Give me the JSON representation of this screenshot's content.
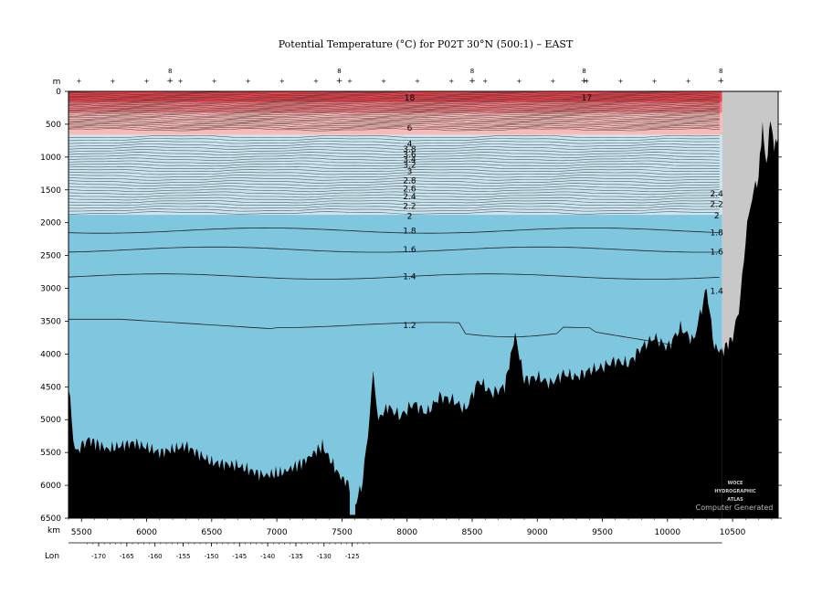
{
  "chart_data": {
    "type": "area",
    "title": "Potential Temperature (°C) for P02T 30°N (500:1) – EAST",
    "depth_unit": "m",
    "distance_unit": "km",
    "lon_label": "Lon",
    "ylim": [
      0,
      6500
    ],
    "xlim_km": [
      5400,
      10850
    ],
    "depth_ticks": [
      0,
      500,
      1000,
      1500,
      2000,
      2500,
      3000,
      3500,
      4000,
      4500,
      5000,
      5500,
      6000,
      6500
    ],
    "distance_ticks": [
      5500,
      6000,
      6500,
      7000,
      7500,
      8000,
      8500,
      9000,
      9500,
      10000,
      10500
    ],
    "lon_ticks": [
      -170,
      -165,
      -160,
      -155,
      -150,
      -145,
      -140,
      -135,
      -130,
      -125
    ],
    "section_end_km": 10420,
    "station_markers_top": [
      {
        "x": 6180,
        "label": "8"
      },
      {
        "x": 7480,
        "label": "8"
      },
      {
        "x": 8500,
        "label": "8"
      },
      {
        "x": 9360,
        "label": "8"
      },
      {
        "x": 10410,
        "label": "8"
      }
    ],
    "isotherm_labels": [
      {
        "value": "18",
        "depth": 100
      },
      {
        "value": "17",
        "depth": 100
      },
      {
        "value": "6",
        "depth": 560
      },
      {
        "value": "4",
        "depth": 800
      },
      {
        "value": "3.8",
        "depth": 880
      },
      {
        "value": "3.6",
        "depth": 960
      },
      {
        "value": "3.4",
        "depth": 1040
      },
      {
        "value": "3.2",
        "depth": 1120
      },
      {
        "value": "3",
        "depth": 1220
      },
      {
        "value": "2.8",
        "depth": 1360
      },
      {
        "value": "2.6",
        "depth": 1480
      },
      {
        "value": "2.4",
        "depth": 1600
      },
      {
        "value": "2.2",
        "depth": 1750
      },
      {
        "value": "2",
        "depth": 1900
      },
      {
        "value": "1.8",
        "depth": 2120
      },
      {
        "value": "1.6",
        "depth": 2410
      },
      {
        "value": "1.4",
        "depth": 2820
      },
      {
        "value": "1.2",
        "depth": 3560
      }
    ],
    "bottom_depth_profile": [
      {
        "x": 5400,
        "d": 4500
      },
      {
        "x": 5450,
        "d": 5500
      },
      {
        "x": 5550,
        "d": 5300
      },
      {
        "x": 5700,
        "d": 5450
      },
      {
        "x": 5900,
        "d": 5350
      },
      {
        "x": 6100,
        "d": 5500
      },
      {
        "x": 6300,
        "d": 5400
      },
      {
        "x": 6500,
        "d": 5650
      },
      {
        "x": 6700,
        "d": 5700
      },
      {
        "x": 6900,
        "d": 5850
      },
      {
        "x": 7050,
        "d": 5800
      },
      {
        "x": 7200,
        "d": 5650
      },
      {
        "x": 7350,
        "d": 5400
      },
      {
        "x": 7480,
        "d": 5850
      },
      {
        "x": 7560,
        "d": 6000
      },
      {
        "x": 7600,
        "d": 6300
      },
      {
        "x": 7660,
        "d": 5950
      },
      {
        "x": 7700,
        "d": 5200
      },
      {
        "x": 7740,
        "d": 4300
      },
      {
        "x": 7780,
        "d": 5000
      },
      {
        "x": 7850,
        "d": 4800
      },
      {
        "x": 7950,
        "d": 4950
      },
      {
        "x": 8050,
        "d": 4750
      },
      {
        "x": 8150,
        "d": 4900
      },
      {
        "x": 8250,
        "d": 4650
      },
      {
        "x": 8350,
        "d": 4700
      },
      {
        "x": 8450,
        "d": 4850
      },
      {
        "x": 8550,
        "d": 4400
      },
      {
        "x": 8650,
        "d": 4600
      },
      {
        "x": 8750,
        "d": 4500
      },
      {
        "x": 8830,
        "d": 3700
      },
      {
        "x": 8900,
        "d": 4400
      },
      {
        "x": 9000,
        "d": 4350
      },
      {
        "x": 9100,
        "d": 4450
      },
      {
        "x": 9200,
        "d": 4300
      },
      {
        "x": 9300,
        "d": 4350
      },
      {
        "x": 9400,
        "d": 4250
      },
      {
        "x": 9500,
        "d": 4200
      },
      {
        "x": 9600,
        "d": 4100
      },
      {
        "x": 9700,
        "d": 4150
      },
      {
        "x": 9800,
        "d": 3900
      },
      {
        "x": 9900,
        "d": 3750
      },
      {
        "x": 10000,
        "d": 3900
      },
      {
        "x": 10100,
        "d": 3600
      },
      {
        "x": 10200,
        "d": 3800
      },
      {
        "x": 10300,
        "d": 3000
      },
      {
        "x": 10360,
        "d": 3900
      },
      {
        "x": 10420,
        "d": 3950
      }
    ],
    "shelf_profile": [
      {
        "x": 10420,
        "d": 3950
      },
      {
        "x": 10500,
        "d": 3750
      },
      {
        "x": 10560,
        "d": 3200
      },
      {
        "x": 10600,
        "d": 2200
      },
      {
        "x": 10650,
        "d": 1600
      },
      {
        "x": 10700,
        "d": 1300
      },
      {
        "x": 10730,
        "d": 500
      },
      {
        "x": 10760,
        "d": 1100
      },
      {
        "x": 10790,
        "d": 400
      },
      {
        "x": 10820,
        "d": 900
      },
      {
        "x": 10850,
        "d": 700
      }
    ],
    "color_bands": [
      {
        "top": 0,
        "bottom": 160,
        "color": "#e8414a"
      },
      {
        "top": 160,
        "bottom": 330,
        "color": "#f07a7e"
      },
      {
        "top": 330,
        "bottom": 660,
        "color": "#f9b9b6"
      },
      {
        "top": 660,
        "bottom": 1880,
        "color": "#cbe6f0"
      },
      {
        "top": 1880,
        "bottom": 6500,
        "color": "#7fc6df"
      }
    ],
    "colors": {
      "land": "#000000",
      "no_data": "#c8c8c8"
    }
  },
  "watermark": {
    "line1": "WOCE",
    "line2": "HYDROGRAPHIC",
    "line3": "ATLAS",
    "line4": "Computer Generated"
  }
}
